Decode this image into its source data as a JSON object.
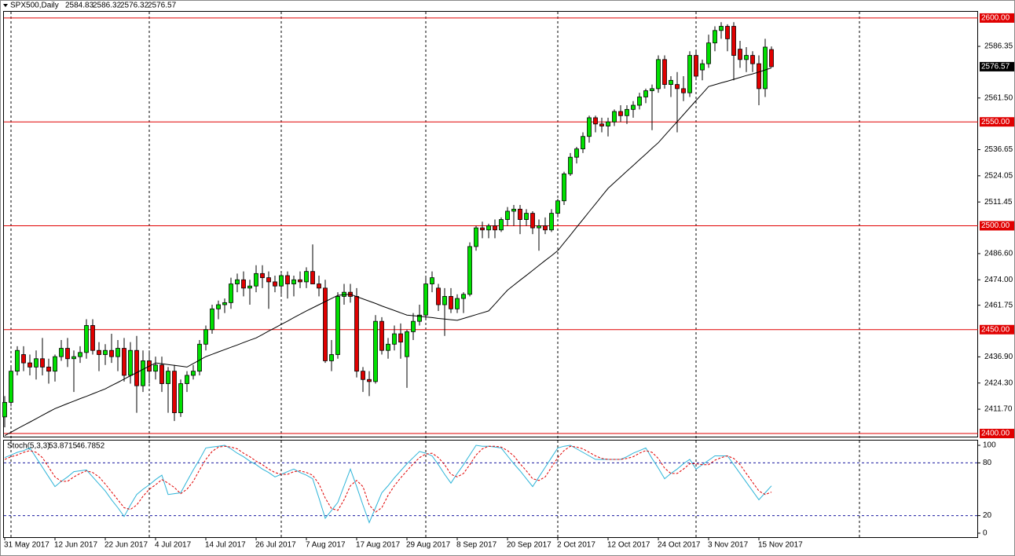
{
  "chart_data": [
    {
      "type": "candlestick",
      "title": "SPX500,Daily",
      "categories": [
        "31 May 2017",
        null,
        null,
        null,
        null,
        null,
        null,
        null,
        "12 Jun 2017",
        null,
        null,
        null,
        null,
        null,
        null,
        null,
        "22 Jun 2017",
        null,
        null,
        null,
        null,
        null,
        null,
        null,
        "4 Jul 2017",
        null,
        null,
        null,
        null,
        null,
        null,
        null,
        "14 Jul 2017",
        null,
        null,
        null,
        null,
        null,
        null,
        null,
        "26 Jul 2017",
        null,
        null,
        null,
        null,
        null,
        null,
        null,
        "7 Aug 2017",
        null,
        null,
        null,
        null,
        null,
        null,
        null,
        "17 Aug 2017",
        null,
        null,
        null,
        null,
        null,
        null,
        null,
        "29 Aug 2017",
        null,
        null,
        null,
        null,
        null,
        null,
        null,
        "8 Sep 2017",
        null,
        null,
        null,
        null,
        null,
        null,
        null,
        "20 Sep 2017",
        null,
        null,
        null,
        null,
        null,
        null,
        null,
        "2 Oct 2017",
        null,
        null,
        null,
        null,
        null,
        null,
        null,
        "12 Oct 2017",
        null,
        null,
        null,
        null,
        null,
        null,
        null,
        "24 Oct 2017",
        null,
        null,
        null,
        null,
        null,
        null,
        null,
        "3 Nov 2017",
        null,
        null,
        null,
        null,
        null,
        null,
        null,
        "15 Nov 2017",
        null,
        null
      ],
      "open": [
        2408,
        2415,
        2430,
        2438,
        2434,
        2432,
        2436,
        2432,
        2430,
        2437,
        2441,
        2436,
        2437,
        2439,
        2452,
        2440,
        2438,
        2440,
        2437,
        2441,
        2428,
        2440,
        2423,
        2435,
        2430,
        2433,
        2424,
        2430,
        2410,
        2424,
        2428,
        2430,
        2443,
        2450,
        2460,
        2462,
        2463,
        2472,
        2474,
        2470,
        2471,
        2477,
        2475,
        2473,
        2471,
        2476,
        2472,
        2474,
        2473,
        2478,
        2472,
        2470,
        2435,
        2438,
        2466,
        2468,
        2466,
        2430,
        2426,
        2425,
        2454,
        2440,
        2443,
        2448,
        2437,
        2449,
        2454,
        2457,
        2472,
        2470,
        2462,
        2466,
        2460,
        2465,
        2467,
        2490,
        2499,
        2498,
        2500,
        2498,
        2503,
        2507,
        2508,
        2503,
        2506,
        2499,
        2500,
        2498,
        2506,
        2512,
        2525,
        2533,
        2537,
        2543,
        2552,
        2549,
        2548,
        2550,
        2555,
        2553,
        2556,
        2558,
        2562,
        2565,
        2566,
        2580,
        2568,
        2568,
        2566,
        2564,
        2582,
        2575,
        2578,
        2588,
        2594,
        2596,
        2596,
        2585,
        2580,
        2582,
        2578,
        2566,
        2584.83
      ],
      "high": [
        2418,
        2432,
        2442,
        2442,
        2438,
        2440,
        2446,
        2436,
        2438,
        2445,
        2446,
        2440,
        2442,
        2455,
        2455,
        2444,
        2443,
        2448,
        2445,
        2446,
        2444,
        2447,
        2440,
        2440,
        2437,
        2437,
        2432,
        2433,
        2426,
        2430,
        2433,
        2445,
        2452,
        2462,
        2464,
        2465,
        2475,
        2477,
        2478,
        2474,
        2481,
        2481,
        2478,
        2476,
        2477,
        2478,
        2476,
        2478,
        2480,
        2491,
        2476,
        2474,
        2445,
        2468,
        2472,
        2472,
        2470,
        2432,
        2430,
        2457,
        2456,
        2446,
        2452,
        2453,
        2450,
        2458,
        2462,
        2475,
        2478,
        2472,
        2470,
        2470,
        2467,
        2468,
        2492,
        2500,
        2502,
        2501,
        2503,
        2504,
        2509,
        2510,
        2510,
        2508,
        2507,
        2503,
        2504,
        2508,
        2513,
        2526,
        2535,
        2538,
        2545,
        2553,
        2553,
        2552,
        2552,
        2556,
        2558,
        2558,
        2560,
        2564,
        2566,
        2568,
        2582,
        2582,
        2572,
        2574,
        2572,
        2584,
        2584,
        2580,
        2592,
        2596,
        2598,
        2597,
        2598,
        2589,
        2586,
        2584,
        2582,
        2590,
        2586.32
      ],
      "low": [
        2403,
        2413,
        2428,
        2430,
        2428,
        2426,
        2428,
        2424,
        2425,
        2435,
        2432,
        2420,
        2434,
        2436,
        2438,
        2430,
        2433,
        2434,
        2430,
        2425,
        2424,
        2410,
        2420,
        2424,
        2426,
        2420,
        2410,
        2406,
        2408,
        2420,
        2426,
        2428,
        2440,
        2448,
        2455,
        2458,
        2460,
        2468,
        2466,
        2462,
        2468,
        2470,
        2460,
        2468,
        2467,
        2465,
        2466,
        2470,
        2470,
        2472,
        2466,
        2434,
        2430,
        2436,
        2462,
        2463,
        2427,
        2420,
        2418,
        2424,
        2438,
        2436,
        2440,
        2436,
        2422,
        2445,
        2452,
        2455,
        2468,
        2459,
        2447,
        2458,
        2458,
        2458,
        2466,
        2488,
        2494,
        2494,
        2494,
        2497,
        2500,
        2500,
        2496,
        2500,
        2496,
        2488,
        2496,
        2497,
        2504,
        2510,
        2524,
        2530,
        2535,
        2540,
        2545,
        2545,
        2543,
        2548,
        2550,
        2549,
        2552,
        2556,
        2559,
        2546,
        2564,
        2566,
        2562,
        2545,
        2560,
        2562,
        2570,
        2570,
        2576,
        2584,
        2590,
        2584,
        2570,
        2576,
        2574,
        2574,
        2558,
        2562,
        2576.32
      ],
      "close": [
        2415,
        2430,
        2440,
        2434,
        2432,
        2436,
        2432,
        2430,
        2437,
        2441,
        2436,
        2437,
        2439,
        2452,
        2440,
        2438,
        2440,
        2437,
        2441,
        2428,
        2440,
        2423,
        2435,
        2430,
        2433,
        2424,
        2430,
        2410,
        2424,
        2428,
        2430,
        2443,
        2450,
        2460,
        2462,
        2463,
        2472,
        2474,
        2470,
        2471,
        2477,
        2475,
        2473,
        2471,
        2476,
        2472,
        2474,
        2473,
        2478,
        2472,
        2470,
        2435,
        2438,
        2466,
        2468,
        2466,
        2430,
        2426,
        2425,
        2454,
        2440,
        2443,
        2448,
        2444,
        2449,
        2454,
        2457,
        2472,
        2475,
        2462,
        2466,
        2460,
        2465,
        2467,
        2490,
        2499,
        2498,
        2500,
        2498,
        2503,
        2507,
        2508,
        2503,
        2506,
        2499,
        2500,
        2498,
        2506,
        2512,
        2525,
        2533,
        2537,
        2543,
        2552,
        2549,
        2548,
        2550,
        2555,
        2553,
        2556,
        2558,
        2562,
        2565,
        2566,
        2580,
        2568,
        2570,
        2566,
        2564,
        2582,
        2572,
        2578,
        2588,
        2594,
        2596,
        2590,
        2582,
        2580,
        2582,
        2578,
        2566,
        2586,
        2576.57
      ],
      "up_color": "#00e000",
      "down_color": "#e00000",
      "ma": {
        "color": "#000000",
        "values": [
          2399,
          2400.6,
          2402.3,
          2403.9,
          2405.5,
          2407.1,
          2408.8,
          2410.4,
          2412,
          2413.2,
          2414.4,
          2415.6,
          2416.8,
          2417.9,
          2419.1,
          2420.3,
          2421.5,
          2423.1,
          2424.6,
          2426.2,
          2427.8,
          2429.3,
          2430.9,
          2432.4,
          2434,
          2433.6,
          2433.2,
          2432.8,
          2432.4,
          2432,
          2433.7,
          2435.3,
          2437,
          2438.1,
          2439.3,
          2440.4,
          2441.5,
          2442.6,
          2443.8,
          2444.9,
          2446,
          2447.6,
          2449.3,
          2450.9,
          2452.5,
          2454.1,
          2455.8,
          2457.4,
          2459,
          2460.5,
          2462,
          2463.5,
          2465,
          2466.5,
          2466.8,
          2467,
          2465.9,
          2464.8,
          2463.7,
          2462.6,
          2461.4,
          2460.3,
          2459.2,
          2458.1,
          2457,
          2456.7,
          2456.4,
          2456.1,
          2455.8,
          2455.4,
          2455.1,
          2454.8,
          2454.5,
          2455.4,
          2456.3,
          2457.2,
          2458.1,
          2459,
          2462.3,
          2465.7,
          2469,
          2471.4,
          2473.8,
          2476.1,
          2478.5,
          2480.9,
          2483.3,
          2485.6,
          2488,
          2491.8,
          2495.5,
          2499.3,
          2503,
          2506.8,
          2510.5,
          2514.3,
          2518,
          2520.8,
          2523.5,
          2526.3,
          2529,
          2531.8,
          2534.5,
          2537.3,
          2540,
          2543.4,
          2546.8,
          2550.1,
          2553.5,
          2556.9,
          2560.3,
          2563.6,
          2567,
          2567.9,
          2568.8,
          2569.6,
          2570.5,
          2571.4,
          2572.3,
          2573.1,
          2574,
          2575,
          2576
        ]
      },
      "levels": [
        {
          "value": 2600,
          "label": "2600.00"
        },
        {
          "value": 2550,
          "label": "2550.00"
        },
        {
          "value": 2500,
          "label": "2500.00"
        },
        {
          "value": 2450,
          "label": "2450.00"
        },
        {
          "value": 2400,
          "label": "2400.00"
        }
      ],
      "level_color": "#e00000",
      "ylim": [
        2398.5,
        2603
      ],
      "yticks": [
        2586.35,
        {
          "value": 2561.5,
          "label": "2561.50"
        },
        2536.65,
        2524.05,
        2511.45,
        {
          "value": 2486.6,
          "label": "2486.60"
        },
        {
          "value": 2474,
          "label": "2474.00"
        },
        2461.75,
        {
          "value": 2436.9,
          "label": "2436.90"
        },
        {
          "value": 2424.3,
          "label": "2424.30"
        },
        {
          "value": 2411.7,
          "label": "2411.70"
        }
      ]
    },
    {
      "type": "line",
      "title": "Stoch(5,3,3)",
      "series": [
        {
          "color": "#2eb4d8",
          "values": [
            86,
            89,
            92,
            94,
            97,
            86,
            75,
            64,
            53,
            59,
            64,
            70,
            71,
            72,
            64,
            56,
            48,
            38,
            29,
            19,
            32,
            44,
            50,
            55,
            61,
            66,
            44,
            45,
            46,
            59,
            72,
            84,
            97,
            98,
            99,
            100,
            96,
            91,
            87,
            82,
            78,
            73,
            69,
            64,
            67,
            70,
            73,
            69,
            66,
            62,
            40,
            17,
            26,
            35,
            54,
            73,
            53,
            32,
            12,
            29,
            46,
            54,
            63,
            71,
            79,
            86,
            93,
            91,
            88,
            78,
            67,
            57,
            68,
            78,
            89,
            100,
            99,
            99,
            98,
            97,
            88,
            79,
            71,
            62,
            53,
            64,
            75,
            86,
            97,
            99,
            100,
            96,
            92,
            88,
            84,
            84,
            84,
            84,
            84,
            87,
            91,
            94,
            97,
            85,
            74,
            62,
            68,
            73,
            79,
            84,
            73,
            78,
            83,
            88,
            88,
            88,
            78,
            68,
            58,
            48,
            38,
            46,
            53.8715
          ]
        },
        {
          "color": "#e00000",
          "dashed": true,
          "values": [
            84,
            87,
            89,
            92,
            94,
            92,
            86,
            75,
            64,
            59,
            59,
            64,
            68,
            71,
            69,
            64,
            56,
            47,
            38,
            29,
            27,
            32,
            42,
            50,
            55,
            61,
            57,
            52,
            45,
            50,
            59,
            72,
            84,
            93,
            98,
            99,
            98,
            96,
            91,
            87,
            82,
            78,
            73,
            69,
            67,
            67,
            70,
            71,
            69,
            66,
            56,
            40,
            28,
            26,
            38,
            54,
            60,
            53,
            32,
            24,
            29,
            43,
            54,
            63,
            71,
            79,
            86,
            90,
            91,
            86,
            78,
            67,
            64,
            68,
            78,
            89,
            96,
            99,
            99,
            98,
            94,
            88,
            79,
            71,
            62,
            60,
            64,
            75,
            86,
            94,
            99,
            98,
            96,
            92,
            88,
            85,
            84,
            84,
            84,
            85,
            87,
            91,
            94,
            92,
            85,
            74,
            68,
            68,
            73,
            79,
            79,
            78,
            78,
            83,
            86,
            88,
            85,
            78,
            68,
            58,
            48,
            44,
            46.7852
          ]
        }
      ],
      "levels": [
        80,
        20
      ],
      "level_color": "#1a1aa0",
      "ylim": [
        -4.5,
        105.4
      ],
      "yticks": [
        100,
        80,
        20,
        0
      ]
    }
  ]
}
